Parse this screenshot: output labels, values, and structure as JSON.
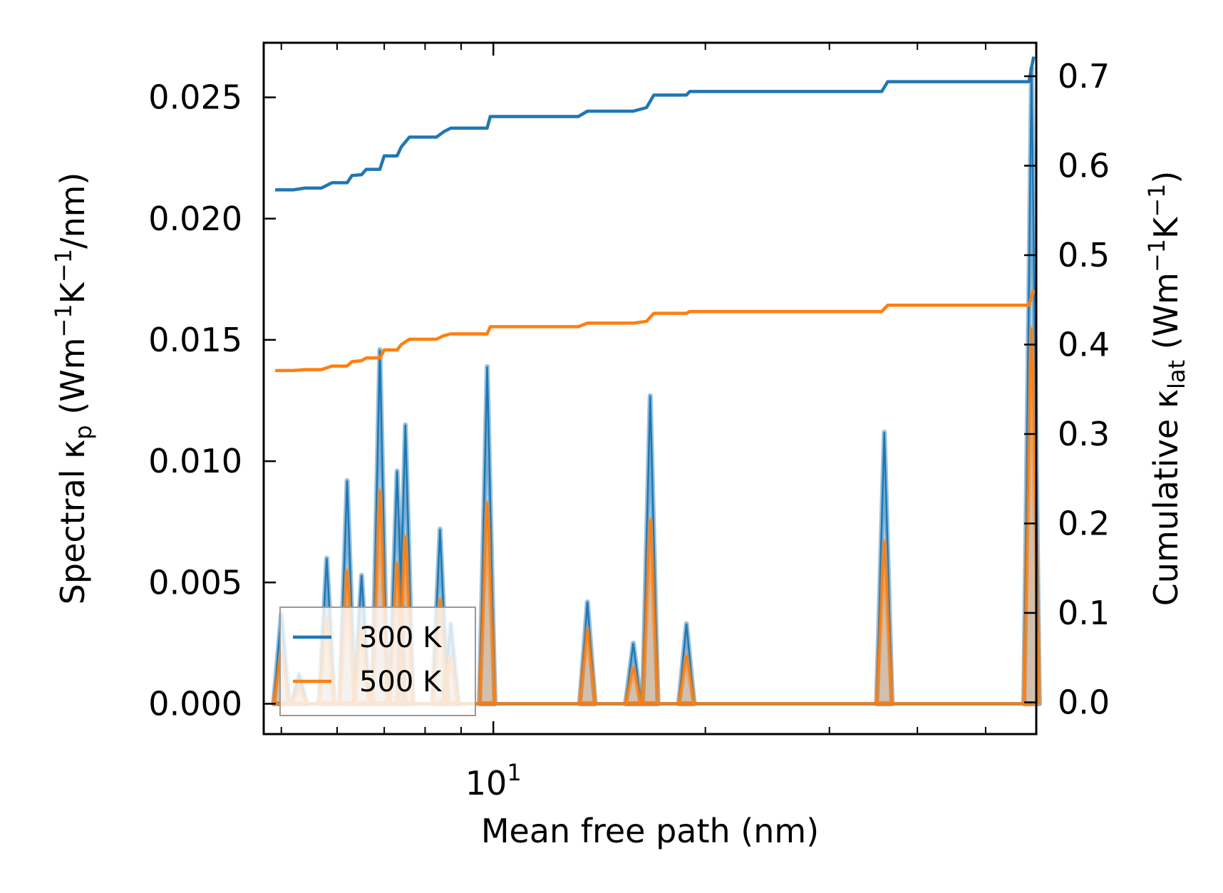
{
  "chart_data": {
    "type": "line",
    "xlabel": "Mean free path (nm)",
    "xscale": "log",
    "xlim": [
      4.72,
      59.0
    ],
    "x_tick_labels": [
      {
        "value": 10,
        "base": "10",
        "exp": "1"
      }
    ],
    "ylabel_left": {
      "pre": "Spectral κ",
      "sub": "p",
      "mid": " (Wm",
      "sup1": "−1",
      "mid2": "K",
      "sup2": "−1",
      "post": "/nm)"
    },
    "ylabel_right": {
      "pre": "Cumulative κ",
      "sub": "lat",
      "mid": " (Wm",
      "sup1": "−1",
      "mid2": "K",
      "sup2": "−1",
      "post": ")"
    },
    "ylim_left": [
      -0.00125,
      0.02725
    ],
    "ylim_right": [
      -0.0355,
      0.7375
    ],
    "yticks_left": [
      "0.000",
      "0.005",
      "0.010",
      "0.015",
      "0.020",
      "0.025"
    ],
    "yticks_right": [
      "0.0",
      "0.1",
      "0.2",
      "0.3",
      "0.4",
      "0.5",
      "0.6",
      "0.7"
    ],
    "grid": false,
    "legend_position": "lower-left",
    "legend": [
      {
        "label": "300 K",
        "color": "#1f77b4"
      },
      {
        "label": "500 K",
        "color": "#ff7f0e"
      }
    ],
    "series": [
      {
        "name": "300 K",
        "color": "#1f77b4",
        "spectral_peaks": [
          {
            "x": 5.0,
            "y": 0.0037
          },
          {
            "x": 5.3,
            "y": 0.0012
          },
          {
            "x": 5.8,
            "y": 0.006
          },
          {
            "x": 6.2,
            "y": 0.0092
          },
          {
            "x": 6.5,
            "y": 0.0053
          },
          {
            "x": 6.9,
            "y": 0.0146
          },
          {
            "x": 7.3,
            "y": 0.0096
          },
          {
            "x": 7.5,
            "y": 0.0115
          },
          {
            "x": 8.4,
            "y": 0.0072
          },
          {
            "x": 8.7,
            "y": 0.0033
          },
          {
            "x": 9.8,
            "y": 0.0139
          },
          {
            "x": 13.6,
            "y": 0.0042
          },
          {
            "x": 15.8,
            "y": 0.0025
          },
          {
            "x": 16.7,
            "y": 0.0127
          },
          {
            "x": 18.8,
            "y": 0.0033
          },
          {
            "x": 35.9,
            "y": 0.0112
          },
          {
            "x": 58.1,
            "y": 0.0262
          }
        ],
        "cumulative": [
          {
            "x": 4.9,
            "y": 0.573
          },
          {
            "x": 5.2,
            "y": 0.573
          },
          {
            "x": 5.4,
            "y": 0.575
          },
          {
            "x": 5.7,
            "y": 0.575
          },
          {
            "x": 5.9,
            "y": 0.581
          },
          {
            "x": 6.2,
            "y": 0.581
          },
          {
            "x": 6.3,
            "y": 0.589
          },
          {
            "x": 6.5,
            "y": 0.59
          },
          {
            "x": 6.6,
            "y": 0.596
          },
          {
            "x": 6.9,
            "y": 0.596
          },
          {
            "x": 7.0,
            "y": 0.611
          },
          {
            "x": 7.3,
            "y": 0.611
          },
          {
            "x": 7.4,
            "y": 0.621
          },
          {
            "x": 7.6,
            "y": 0.632
          },
          {
            "x": 8.3,
            "y": 0.632
          },
          {
            "x": 8.5,
            "y": 0.638
          },
          {
            "x": 8.7,
            "y": 0.642
          },
          {
            "x": 9.8,
            "y": 0.642
          },
          {
            "x": 9.9,
            "y": 0.655
          },
          {
            "x": 13.2,
            "y": 0.655
          },
          {
            "x": 13.6,
            "y": 0.661
          },
          {
            "x": 15.8,
            "y": 0.661
          },
          {
            "x": 16.5,
            "y": 0.665
          },
          {
            "x": 16.9,
            "y": 0.679
          },
          {
            "x": 18.8,
            "y": 0.679
          },
          {
            "x": 19.0,
            "y": 0.683
          },
          {
            "x": 35.6,
            "y": 0.683
          },
          {
            "x": 36.3,
            "y": 0.694
          },
          {
            "x": 57.6,
            "y": 0.694
          },
          {
            "x": 58.5,
            "y": 0.722
          }
        ]
      },
      {
        "name": "500 K",
        "color": "#ff7f0e",
        "spectral_peaks": [
          {
            "x": 5.0,
            "y": 0.0022
          },
          {
            "x": 5.3,
            "y": 0.0007
          },
          {
            "x": 5.8,
            "y": 0.0036
          },
          {
            "x": 6.2,
            "y": 0.0055
          },
          {
            "x": 6.5,
            "y": 0.0032
          },
          {
            "x": 6.9,
            "y": 0.0088
          },
          {
            "x": 7.3,
            "y": 0.0058
          },
          {
            "x": 7.5,
            "y": 0.0069
          },
          {
            "x": 8.4,
            "y": 0.0043
          },
          {
            "x": 8.7,
            "y": 0.002
          },
          {
            "x": 9.8,
            "y": 0.0083
          },
          {
            "x": 13.6,
            "y": 0.0031
          },
          {
            "x": 15.8,
            "y": 0.0015
          },
          {
            "x": 16.7,
            "y": 0.0076
          },
          {
            "x": 18.8,
            "y": 0.002
          },
          {
            "x": 35.9,
            "y": 0.0067
          },
          {
            "x": 58.1,
            "y": 0.0155
          }
        ],
        "cumulative": [
          {
            "x": 4.9,
            "y": 0.371
          },
          {
            "x": 5.2,
            "y": 0.371
          },
          {
            "x": 5.4,
            "y": 0.372
          },
          {
            "x": 5.7,
            "y": 0.372
          },
          {
            "x": 5.9,
            "y": 0.376
          },
          {
            "x": 6.2,
            "y": 0.376
          },
          {
            "x": 6.3,
            "y": 0.381
          },
          {
            "x": 6.5,
            "y": 0.382
          },
          {
            "x": 6.6,
            "y": 0.385
          },
          {
            "x": 6.9,
            "y": 0.385
          },
          {
            "x": 7.0,
            "y": 0.394
          },
          {
            "x": 7.3,
            "y": 0.394
          },
          {
            "x": 7.4,
            "y": 0.4
          },
          {
            "x": 7.6,
            "y": 0.406
          },
          {
            "x": 8.3,
            "y": 0.406
          },
          {
            "x": 8.5,
            "y": 0.41
          },
          {
            "x": 8.7,
            "y": 0.412
          },
          {
            "x": 9.8,
            "y": 0.412
          },
          {
            "x": 9.9,
            "y": 0.42
          },
          {
            "x": 13.2,
            "y": 0.42
          },
          {
            "x": 13.6,
            "y": 0.424
          },
          {
            "x": 15.8,
            "y": 0.424
          },
          {
            "x": 16.5,
            "y": 0.426
          },
          {
            "x": 16.9,
            "y": 0.435
          },
          {
            "x": 18.8,
            "y": 0.435
          },
          {
            "x": 19.0,
            "y": 0.437
          },
          {
            "x": 35.6,
            "y": 0.437
          },
          {
            "x": 36.3,
            "y": 0.444
          },
          {
            "x": 57.6,
            "y": 0.444
          },
          {
            "x": 58.5,
            "y": 0.461
          }
        ]
      }
    ]
  }
}
